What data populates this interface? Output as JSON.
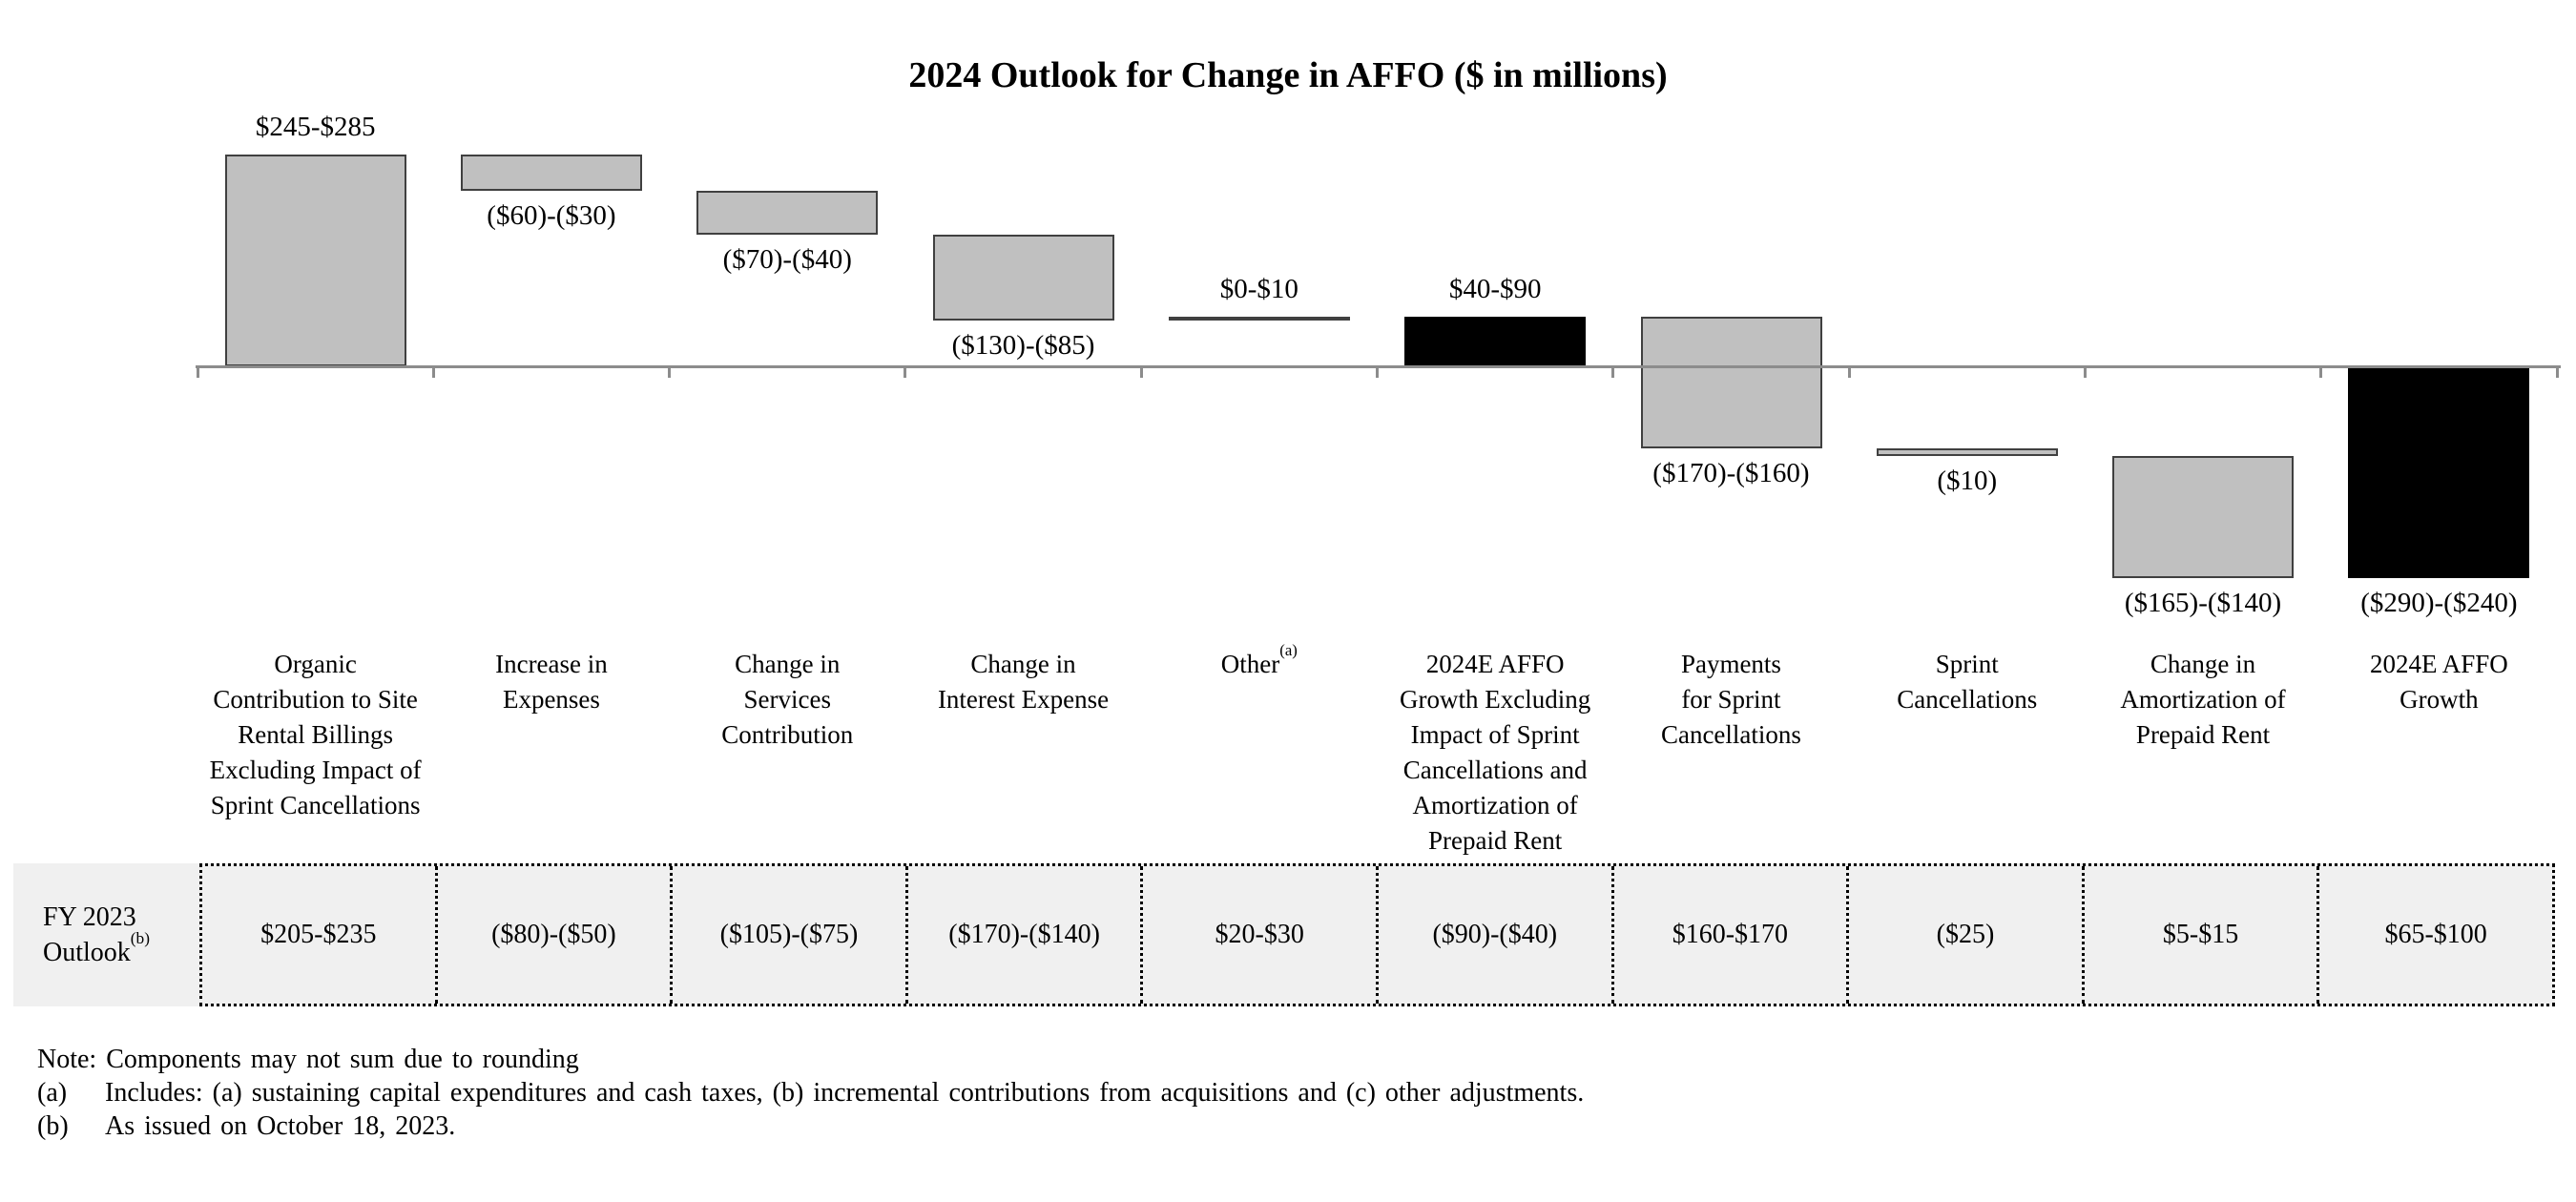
{
  "title": "2024 Outlook for Change in AFFO ($ in millions)",
  "chart_data": {
    "type": "waterfall",
    "title": "2024 Outlook for Change in AFFO ($ in millions)",
    "unit": "$ in millions",
    "baseline_value": 0,
    "legend": "none",
    "grid": false,
    "steps": [
      {
        "category_lines": [
          "Organic",
          "Contribution to Site",
          "Rental Billings",
          "Excluding Impact of",
          "Sprint Cancellations"
        ],
        "value_label": "$245-$285",
        "low": 245,
        "high": 285,
        "color": "gray",
        "subtotal": false,
        "label_pos": "above",
        "fy2023": "$205-$235"
      },
      {
        "category_lines": [
          "Increase in",
          "Expenses"
        ],
        "value_label": "($60)-($30)",
        "low": -60,
        "high": -30,
        "color": "gray",
        "subtotal": false,
        "label_pos": "below",
        "fy2023": "($80)-($50)"
      },
      {
        "category_lines": [
          "Change in",
          "Services",
          "Contribution"
        ],
        "value_label": "($70)-($40)",
        "low": -70,
        "high": -40,
        "color": "gray",
        "subtotal": false,
        "label_pos": "below",
        "fy2023": "($105)-($75)"
      },
      {
        "category_lines": [
          "Change in",
          "Interest Expense"
        ],
        "value_label": "($130)-($85)",
        "low": -130,
        "high": -85,
        "color": "gray",
        "subtotal": false,
        "label_pos": "below",
        "fy2023": "($170)-($140)"
      },
      {
        "category_lines": [
          "Other"
        ],
        "category_sup": "(a)",
        "value_label": "$0-$10",
        "low": 0,
        "high": 10,
        "color": "gray",
        "subtotal": false,
        "label_pos": "above",
        "fy2023": "$20-$30"
      },
      {
        "category_lines": [
          "2024E AFFO",
          "Growth Excluding",
          "Impact of Sprint",
          "Cancellations and",
          "Amortization of",
          "Prepaid Rent"
        ],
        "value_label": "$40-$90",
        "low": 40,
        "high": 90,
        "color": "black",
        "subtotal": true,
        "label_pos": "above",
        "fy2023": "($90)-($40)"
      },
      {
        "category_lines": [
          "Payments",
          "for Sprint",
          "Cancellations"
        ],
        "value_label": "($170)-($160)",
        "low": -170,
        "high": -160,
        "color": "gray",
        "subtotal": false,
        "label_pos": "below",
        "fy2023": "$160-$170"
      },
      {
        "category_lines": [
          "Sprint",
          "Cancellations"
        ],
        "value_label": "($10)",
        "low": -10,
        "high": -10,
        "color": "gray",
        "subtotal": false,
        "label_pos": "below",
        "fy2023": "($25)"
      },
      {
        "category_lines": [
          "Change in",
          "Amortization of",
          "Prepaid Rent"
        ],
        "value_label": "($165)-($140)",
        "low": -165,
        "high": -140,
        "color": "gray",
        "subtotal": false,
        "label_pos": "below",
        "fy2023": "$5-$15"
      },
      {
        "category_lines": [
          "2024E AFFO",
          "Growth"
        ],
        "value_label": "($290)-($240)",
        "low": -290,
        "high": -240,
        "color": "black",
        "subtotal": true,
        "label_pos": "below",
        "fy2023": "$65-$100"
      }
    ]
  },
  "fy_row": {
    "label_line1": "FY 2023",
    "label_line2": "Outlook",
    "label_sup": "(b)"
  },
  "colors": {
    "bar_gray": "#C0C0C0",
    "bar_gray_border": "#404040",
    "bar_black": "#000000",
    "axis": "#8C8C8C",
    "table_bg": "#F0F0F0",
    "dotted_border": "#000000"
  },
  "notes": {
    "line1": "Note: Components may not sum due to rounding",
    "items": [
      {
        "marker": "(a)",
        "text": "Includes: (a) sustaining capital expenditures and cash taxes, (b) incremental contributions from acquisitions and (c) other adjustments."
      },
      {
        "marker": "(b)",
        "text": "As issued on October 18, 2023."
      }
    ]
  }
}
